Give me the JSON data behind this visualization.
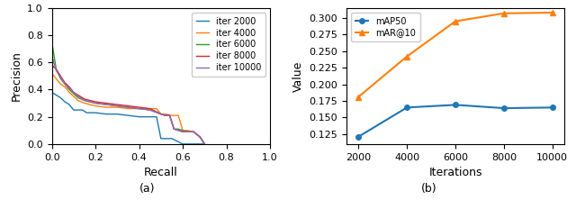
{
  "left_title": "(a)",
  "right_title": "(b)",
  "pr_curves": {
    "iter 2000": {
      "color": "#1f77b4",
      "recall": [
        0.0,
        0.02,
        0.04,
        0.06,
        0.08,
        0.1,
        0.12,
        0.14,
        0.16,
        0.18,
        0.2,
        0.25,
        0.3,
        0.35,
        0.4,
        0.45,
        0.48,
        0.5,
        0.52,
        0.55,
        0.6,
        0.65,
        0.7
      ],
      "precision": [
        0.38,
        0.36,
        0.34,
        0.31,
        0.29,
        0.25,
        0.25,
        0.25,
        0.23,
        0.23,
        0.23,
        0.22,
        0.22,
        0.21,
        0.2,
        0.2,
        0.2,
        0.04,
        0.04,
        0.04,
        0.0,
        0.0,
        0.0
      ]
    },
    "iter 4000": {
      "color": "#ff7f0e",
      "recall": [
        0.0,
        0.02,
        0.04,
        0.06,
        0.08,
        0.1,
        0.12,
        0.15,
        0.2,
        0.25,
        0.3,
        0.35,
        0.4,
        0.45,
        0.48,
        0.5,
        0.52,
        0.55,
        0.58,
        0.6,
        0.62,
        0.65,
        0.68,
        0.7
      ],
      "precision": [
        0.52,
        0.48,
        0.44,
        0.42,
        0.38,
        0.35,
        0.32,
        0.3,
        0.28,
        0.27,
        0.27,
        0.26,
        0.26,
        0.26,
        0.26,
        0.22,
        0.22,
        0.21,
        0.21,
        0.1,
        0.1,
        0.09,
        0.05,
        0.0
      ]
    },
    "iter 6000": {
      "color": "#2ca02c",
      "recall": [
        0.0,
        0.02,
        0.04,
        0.06,
        0.08,
        0.1,
        0.12,
        0.15,
        0.2,
        0.25,
        0.3,
        0.35,
        0.4,
        0.45,
        0.5,
        0.52,
        0.54,
        0.56,
        0.58,
        0.6,
        0.62,
        0.65,
        0.68,
        0.7
      ],
      "precision": [
        0.75,
        0.55,
        0.48,
        0.44,
        0.4,
        0.37,
        0.34,
        0.32,
        0.3,
        0.29,
        0.28,
        0.27,
        0.26,
        0.25,
        0.22,
        0.21,
        0.21,
        0.11,
        0.11,
        0.1,
        0.09,
        0.09,
        0.05,
        0.0
      ]
    },
    "iter 8000": {
      "color": "#d62728",
      "recall": [
        0.0,
        0.02,
        0.04,
        0.06,
        0.08,
        0.1,
        0.12,
        0.15,
        0.2,
        0.25,
        0.3,
        0.35,
        0.4,
        0.45,
        0.5,
        0.52,
        0.54,
        0.56,
        0.58,
        0.6,
        0.62,
        0.65,
        0.68,
        0.7
      ],
      "precision": [
        0.58,
        0.55,
        0.5,
        0.45,
        0.42,
        0.38,
        0.36,
        0.33,
        0.31,
        0.3,
        0.29,
        0.28,
        0.27,
        0.26,
        0.22,
        0.21,
        0.21,
        0.11,
        0.1,
        0.09,
        0.09,
        0.09,
        0.05,
        0.0
      ]
    },
    "iter 10000": {
      "color": "#9467bd",
      "recall": [
        0.0,
        0.02,
        0.04,
        0.06,
        0.08,
        0.1,
        0.12,
        0.15,
        0.2,
        0.25,
        0.3,
        0.35,
        0.4,
        0.45,
        0.5,
        0.52,
        0.54,
        0.56,
        0.58,
        0.6,
        0.62,
        0.65,
        0.68,
        0.7
      ],
      "precision": [
        0.65,
        0.54,
        0.49,
        0.44,
        0.41,
        0.38,
        0.35,
        0.32,
        0.3,
        0.29,
        0.28,
        0.27,
        0.26,
        0.25,
        0.22,
        0.21,
        0.21,
        0.11,
        0.1,
        0.09,
        0.09,
        0.09,
        0.05,
        0.0
      ]
    }
  },
  "iterations": [
    2000,
    4000,
    6000,
    8000,
    10000
  ],
  "mAP50": [
    0.121,
    0.165,
    0.169,
    0.164,
    0.165
  ],
  "mAR10": [
    0.181,
    0.242,
    0.295,
    0.307,
    0.308
  ],
  "mAP50_color": "#1f77b4",
  "mAR10_color": "#ff7f0e",
  "right_ylabel": "Value",
  "right_xlabel": "Iterations",
  "left_xlabel": "Recall",
  "left_ylabel": "Precision",
  "right_yticks": [
    0.125,
    0.15,
    0.175,
    0.2,
    0.225,
    0.25,
    0.275,
    0.3
  ],
  "right_ylim": [
    0.11,
    0.315
  ],
  "right_xlim": [
    1500,
    10500
  ],
  "left_xlim": [
    0.0,
    1.0
  ],
  "left_ylim": [
    0.0,
    1.0
  ],
  "left_xticks": [
    0.0,
    0.2,
    0.4,
    0.6,
    0.8,
    1.0
  ],
  "left_yticks": [
    0.0,
    0.2,
    0.4,
    0.6,
    0.8,
    1.0
  ],
  "fig_width": 6.4,
  "fig_height": 2.22,
  "dpi": 100
}
